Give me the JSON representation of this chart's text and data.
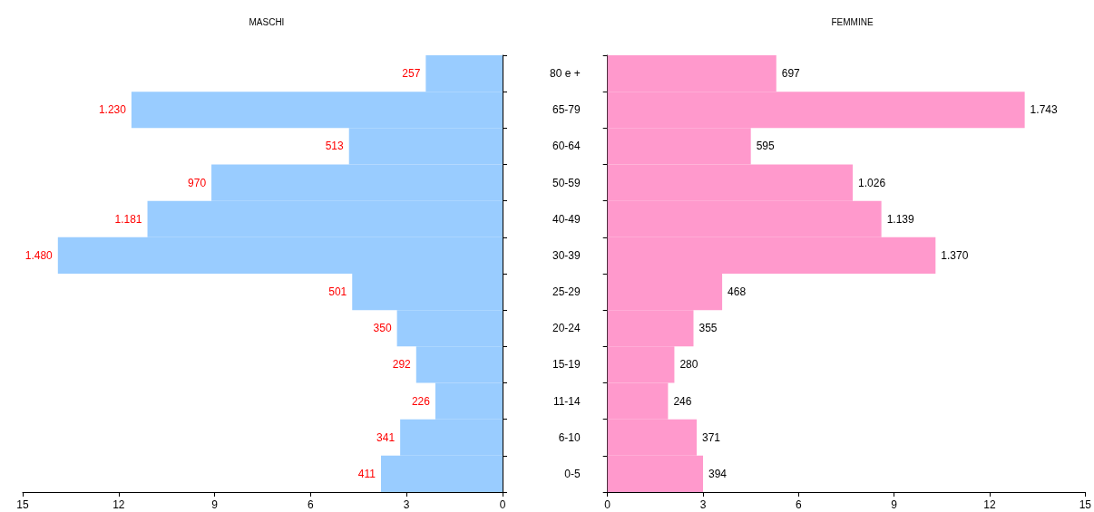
{
  "chart_data": [
    {
      "type": "bar",
      "orientation": "horizontal",
      "title": "MASCHI",
      "categories": [
        null,
        null,
        null,
        null,
        null,
        null,
        null,
        null,
        null,
        null,
        null,
        null
      ],
      "values": [
        2.4,
        11.6,
        4.8,
        9.1,
        11.1,
        13.9,
        4.7,
        3.3,
        2.7,
        2.1,
        3.2,
        3.8
      ],
      "annotations": [
        {
          "text": "257",
          "x": 2.4
        },
        {
          "text": "1.230",
          "x": 11.6
        },
        {
          "text": "513",
          "x": 4.8
        },
        {
          "text": "970",
          "x": 9.1
        },
        {
          "text": "1.181",
          "x": 11.1
        },
        {
          "text": "1.480",
          "x": 13.9
        },
        {
          "text": "501",
          "x": 4.7
        },
        {
          "text": "350",
          "x": 3.3
        },
        {
          "text": "292",
          "x": 2.7
        },
        {
          "text": "226",
          "x": 2.1
        },
        {
          "text": "341",
          "x": 3.2
        },
        {
          "text": "411",
          "x": 3.8
        }
      ],
      "color": "#99ccff",
      "xlim": [
        15,
        0
      ],
      "xticks": [
        15,
        12,
        9,
        6,
        3,
        0
      ]
    },
    {
      "type": "bar",
      "orientation": "horizontal",
      "title": "FEMMINE",
      "categories": [
        "80 e +",
        "65-79",
        "60-64",
        "50-59",
        "40-49",
        "30-39",
        "25-29",
        "20-24",
        "15-19",
        "11-14",
        "6-10",
        "0-5"
      ],
      "values": [
        5.3,
        13.1,
        4.5,
        7.7,
        8.6,
        10.3,
        3.6,
        2.7,
        2.1,
        1.9,
        2.8,
        3.0
      ],
      "annotations": [
        {
          "text": "697",
          "x": 5.3,
          "y": "80 e +"
        },
        {
          "text": "1.743",
          "x": 13.1,
          "y": "65-79"
        },
        {
          "text": "595",
          "x": 4.5,
          "y": "60-64"
        },
        {
          "text": "1.026",
          "x": 7.7,
          "y": "50-59"
        },
        {
          "text": "1.139",
          "x": 8.6,
          "y": "40-49"
        },
        {
          "text": "1.370",
          "x": 10.3,
          "y": "30-39"
        },
        {
          "text": "468",
          "x": 3.6,
          "y": "25-29"
        },
        {
          "text": "355",
          "x": 2.7,
          "y": "20-24"
        },
        {
          "text": "280",
          "x": 2.1,
          "y": "15-19"
        },
        {
          "text": "246",
          "x": 1.9,
          "y": "11-14"
        },
        {
          "text": "371",
          "x": 2.8,
          "y": "6-10"
        },
        {
          "text": "394",
          "x": 3.0,
          "y": "0-5"
        }
      ],
      "color": "#ff99cc",
      "xlim": [
        0,
        15
      ],
      "xticks": [
        0,
        3,
        6,
        9,
        12,
        15
      ]
    }
  ]
}
